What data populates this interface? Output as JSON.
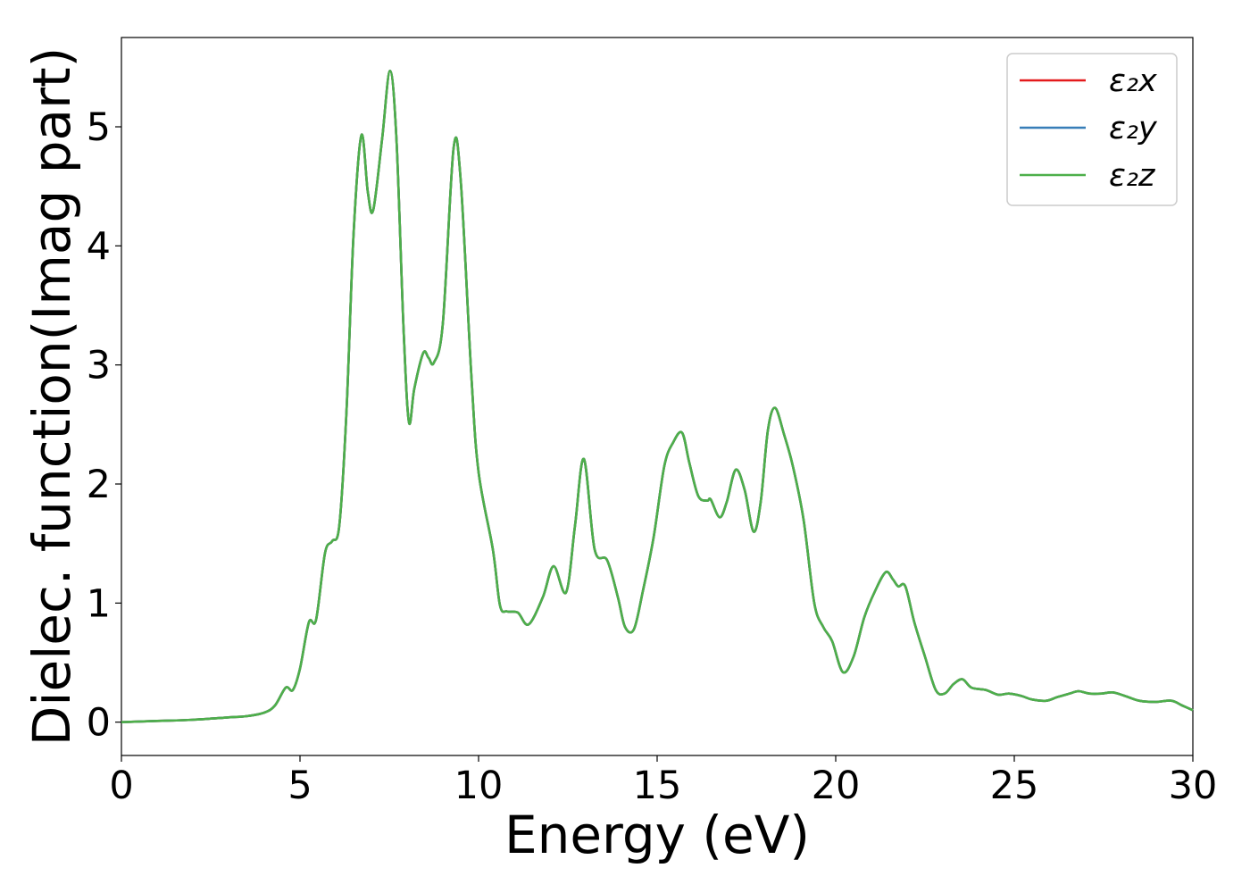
{
  "chart_data": {
    "type": "line",
    "xlabel": "Energy (eV)",
    "ylabel": "Dielec. function(Imag part)",
    "xlim": [
      0,
      30
    ],
    "ylim": [
      -0.28,
      5.75
    ],
    "xticks": [
      0,
      5,
      10,
      15,
      20,
      25,
      30
    ],
    "yticks": [
      0,
      1,
      2,
      3,
      4,
      5
    ],
    "xtick_labels": [
      "0",
      "5",
      "10",
      "15",
      "20",
      "25",
      "30"
    ],
    "ytick_labels": [
      "0",
      "1",
      "2",
      "3",
      "4",
      "5"
    ],
    "grid": false,
    "legend_position": "top-right",
    "x": [
      0,
      1,
      2,
      3,
      3.5,
      4.0,
      4.3,
      4.6,
      4.8,
      5.0,
      5.25,
      5.45,
      5.7,
      5.9,
      6.1,
      6.3,
      6.5,
      6.72,
      6.9,
      7.05,
      7.3,
      7.52,
      7.7,
      7.9,
      8.05,
      8.2,
      8.45,
      8.6,
      8.75,
      9.0,
      9.3,
      9.5,
      9.8,
      10.0,
      10.4,
      10.6,
      10.8,
      11.1,
      11.4,
      11.8,
      12.1,
      12.45,
      12.7,
      12.95,
      13.25,
      13.6,
      13.9,
      14.1,
      14.35,
      14.6,
      14.9,
      15.2,
      15.45,
      15.7,
      15.9,
      16.15,
      16.4,
      16.5,
      16.75,
      16.95,
      17.2,
      17.45,
      17.7,
      17.9,
      18.1,
      18.3,
      18.55,
      18.8,
      19.1,
      19.4,
      19.65,
      19.9,
      20.2,
      20.5,
      20.8,
      21.1,
      21.4,
      21.6,
      21.75,
      21.95,
      22.2,
      22.5,
      22.8,
      23.05,
      23.3,
      23.55,
      23.8,
      24.2,
      24.55,
      24.85,
      25.2,
      25.5,
      25.9,
      26.2,
      26.55,
      26.8,
      27.1,
      27.45,
      27.75,
      28.1,
      28.5,
      28.95,
      29.4,
      29.7,
      30.0
    ],
    "series": [
      {
        "name": "ε₂x",
        "color": "#e41a1c",
        "y": [
          0.0,
          0.01,
          0.02,
          0.04,
          0.05,
          0.08,
          0.14,
          0.29,
          0.27,
          0.45,
          0.84,
          0.86,
          1.42,
          1.52,
          1.65,
          2.6,
          4.1,
          4.93,
          4.45,
          4.3,
          4.9,
          5.47,
          4.9,
          3.3,
          2.52,
          2.8,
          3.1,
          3.06,
          3.02,
          3.35,
          4.82,
          4.55,
          2.9,
          2.1,
          1.45,
          0.98,
          0.93,
          0.92,
          0.82,
          1.05,
          1.31,
          1.09,
          1.65,
          2.21,
          1.45,
          1.36,
          1.05,
          0.8,
          0.78,
          1.1,
          1.55,
          2.15,
          2.35,
          2.43,
          2.18,
          1.9,
          1.86,
          1.87,
          1.72,
          1.85,
          2.12,
          1.95,
          1.6,
          1.85,
          2.45,
          2.64,
          2.42,
          2.15,
          1.7,
          1.0,
          0.8,
          0.68,
          0.42,
          0.55,
          0.88,
          1.1,
          1.26,
          1.2,
          1.14,
          1.14,
          0.84,
          0.55,
          0.27,
          0.24,
          0.32,
          0.36,
          0.29,
          0.27,
          0.23,
          0.24,
          0.22,
          0.19,
          0.18,
          0.21,
          0.24,
          0.26,
          0.24,
          0.24,
          0.25,
          0.22,
          0.18,
          0.17,
          0.18,
          0.14,
          0.1
        ]
      },
      {
        "name": "ε₂y",
        "color": "#377eb8",
        "y": [
          0.0,
          0.01,
          0.02,
          0.04,
          0.05,
          0.08,
          0.14,
          0.29,
          0.27,
          0.45,
          0.84,
          0.86,
          1.42,
          1.52,
          1.65,
          2.6,
          4.1,
          4.93,
          4.45,
          4.3,
          4.9,
          5.47,
          4.9,
          3.3,
          2.52,
          2.8,
          3.1,
          3.06,
          3.02,
          3.35,
          4.82,
          4.55,
          2.9,
          2.1,
          1.45,
          0.98,
          0.93,
          0.92,
          0.82,
          1.05,
          1.31,
          1.09,
          1.65,
          2.21,
          1.45,
          1.36,
          1.05,
          0.8,
          0.78,
          1.1,
          1.55,
          2.15,
          2.35,
          2.43,
          2.18,
          1.9,
          1.86,
          1.87,
          1.72,
          1.85,
          2.12,
          1.95,
          1.6,
          1.85,
          2.45,
          2.64,
          2.42,
          2.15,
          1.7,
          1.0,
          0.8,
          0.68,
          0.42,
          0.55,
          0.88,
          1.1,
          1.26,
          1.2,
          1.14,
          1.14,
          0.84,
          0.55,
          0.27,
          0.24,
          0.32,
          0.36,
          0.29,
          0.27,
          0.23,
          0.24,
          0.22,
          0.19,
          0.18,
          0.21,
          0.24,
          0.26,
          0.24,
          0.24,
          0.25,
          0.22,
          0.18,
          0.17,
          0.18,
          0.14,
          0.1
        ]
      },
      {
        "name": "ε₂z",
        "color": "#4daf4a",
        "y": [
          0.0,
          0.01,
          0.02,
          0.04,
          0.05,
          0.08,
          0.14,
          0.29,
          0.27,
          0.45,
          0.84,
          0.86,
          1.42,
          1.52,
          1.65,
          2.6,
          4.1,
          4.93,
          4.45,
          4.3,
          4.9,
          5.47,
          4.9,
          3.3,
          2.52,
          2.8,
          3.1,
          3.06,
          3.02,
          3.35,
          4.82,
          4.55,
          2.9,
          2.1,
          1.45,
          0.98,
          0.93,
          0.92,
          0.82,
          1.05,
          1.31,
          1.09,
          1.65,
          2.21,
          1.45,
          1.36,
          1.05,
          0.8,
          0.78,
          1.1,
          1.55,
          2.15,
          2.35,
          2.43,
          2.18,
          1.9,
          1.86,
          1.87,
          1.72,
          1.85,
          2.12,
          1.95,
          1.6,
          1.85,
          2.45,
          2.64,
          2.42,
          2.15,
          1.7,
          1.0,
          0.8,
          0.68,
          0.42,
          0.55,
          0.88,
          1.1,
          1.26,
          1.2,
          1.14,
          1.14,
          0.84,
          0.55,
          0.27,
          0.24,
          0.32,
          0.36,
          0.29,
          0.27,
          0.23,
          0.24,
          0.22,
          0.19,
          0.18,
          0.21,
          0.24,
          0.26,
          0.24,
          0.24,
          0.25,
          0.22,
          0.18,
          0.17,
          0.18,
          0.14,
          0.1
        ]
      }
    ]
  }
}
